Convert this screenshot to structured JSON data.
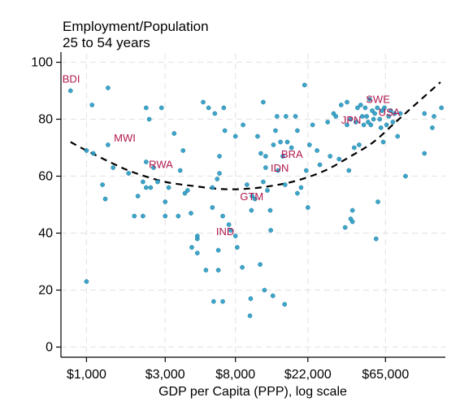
{
  "chart_data": {
    "type": "scatter",
    "title": "Employment/Population",
    "subtitle": "25 to 54 years",
    "xlabel": "GDP per Capita (PPP), log scale",
    "ylabel": "",
    "x_scale": "log",
    "xlim": [
      700,
      150000
    ],
    "ylim": [
      -3,
      103
    ],
    "grid": true,
    "x_ticks": [
      {
        "value": 1000,
        "label": "$1,000"
      },
      {
        "value": 3000,
        "label": "$3,000"
      },
      {
        "value": 8000,
        "label": "$8,000"
      },
      {
        "value": 22000,
        "label": "$22,000"
      },
      {
        "value": 65000,
        "label": "$65,000"
      }
    ],
    "y_ticks": [
      {
        "value": 0,
        "label": "0"
      },
      {
        "value": 20,
        "label": "20"
      },
      {
        "value": 40,
        "label": "40"
      },
      {
        "value": 60,
        "label": "60"
      },
      {
        "value": 80,
        "label": "80"
      },
      {
        "value": 100,
        "label": "100"
      }
    ],
    "colors": {
      "points": "#2a9bc2",
      "labels": "#b0174f",
      "fit_line": "#000000",
      "grid": "#e6e6e6"
    },
    "fit_curve": [
      {
        "x": 800,
        "y": 72
      },
      {
        "x": 1000,
        "y": 69
      },
      {
        "x": 1500,
        "y": 64
      },
      {
        "x": 2000,
        "y": 61
      },
      {
        "x": 3000,
        "y": 58
      },
      {
        "x": 4500,
        "y": 56.5
      },
      {
        "x": 6500,
        "y": 55.5
      },
      {
        "x": 9000,
        "y": 55.5
      },
      {
        "x": 13000,
        "y": 56.5
      },
      {
        "x": 19000,
        "y": 58.5
      },
      {
        "x": 28000,
        "y": 62
      },
      {
        "x": 40000,
        "y": 67
      },
      {
        "x": 55000,
        "y": 72
      },
      {
        "x": 75000,
        "y": 79
      },
      {
        "x": 100000,
        "y": 85.5
      },
      {
        "x": 140000,
        "y": 93
      }
    ],
    "labeled_points": [
      {
        "label": "BDI",
        "x": 800,
        "y": 90
      },
      {
        "label": "MWI",
        "x": 1500,
        "y": 69
      },
      {
        "label": "RWA",
        "x": 2500,
        "y": 60
      },
      {
        "label": "IND",
        "x": 7000,
        "y": 43
      },
      {
        "label": "GTM",
        "x": 10000,
        "y": 55
      },
      {
        "label": "IDN",
        "x": 14000,
        "y": 61
      },
      {
        "label": "BRA",
        "x": 15500,
        "y": 67
      },
      {
        "label": "JPN",
        "x": 42000,
        "y": 79
      },
      {
        "label": "SWE",
        "x": 58000,
        "y": 84
      },
      {
        "label": "USA",
        "x": 69000,
        "y": 80
      }
    ],
    "points": [
      {
        "x": 800,
        "y": 90
      },
      {
        "x": 1000,
        "y": 23
      },
      {
        "x": 1000,
        "y": 69
      },
      {
        "x": 1080,
        "y": 85
      },
      {
        "x": 1100,
        "y": 68
      },
      {
        "x": 1250,
        "y": 57
      },
      {
        "x": 1300,
        "y": 52
      },
      {
        "x": 1350,
        "y": 71
      },
      {
        "x": 1350,
        "y": 91
      },
      {
        "x": 1450,
        "y": 63
      },
      {
        "x": 1800,
        "y": 61
      },
      {
        "x": 1950,
        "y": 46
      },
      {
        "x": 2050,
        "y": 53
      },
      {
        "x": 2200,
        "y": 58
      },
      {
        "x": 2200,
        "y": 46
      },
      {
        "x": 2300,
        "y": 56
      },
      {
        "x": 2300,
        "y": 65
      },
      {
        "x": 2300,
        "y": 84
      },
      {
        "x": 2400,
        "y": 80
      },
      {
        "x": 2450,
        "y": 56
      },
      {
        "x": 2550,
        "y": 63
      },
      {
        "x": 2700,
        "y": 58
      },
      {
        "x": 2850,
        "y": 84
      },
      {
        "x": 3000,
        "y": 46
      },
      {
        "x": 3000,
        "y": 51
      },
      {
        "x": 3150,
        "y": 56
      },
      {
        "x": 3400,
        "y": 75
      },
      {
        "x": 3600,
        "y": 46
      },
      {
        "x": 3700,
        "y": 62
      },
      {
        "x": 3850,
        "y": 69
      },
      {
        "x": 3950,
        "y": 54
      },
      {
        "x": 4100,
        "y": 55
      },
      {
        "x": 4300,
        "y": 47
      },
      {
        "x": 4350,
        "y": 35
      },
      {
        "x": 4700,
        "y": 38
      },
      {
        "x": 4700,
        "y": 39
      },
      {
        "x": 4700,
        "y": 33
      },
      {
        "x": 5100,
        "y": 86
      },
      {
        "x": 5300,
        "y": 27
      },
      {
        "x": 5500,
        "y": 84
      },
      {
        "x": 5800,
        "y": 49
      },
      {
        "x": 5800,
        "y": 56
      },
      {
        "x": 5900,
        "y": 16
      },
      {
        "x": 6000,
        "y": 82
      },
      {
        "x": 6200,
        "y": 59
      },
      {
        "x": 6300,
        "y": 27
      },
      {
        "x": 6300,
        "y": 34
      },
      {
        "x": 6400,
        "y": 67
      },
      {
        "x": 6400,
        "y": 61
      },
      {
        "x": 6700,
        "y": 16
      },
      {
        "x": 6700,
        "y": 46
      },
      {
        "x": 6800,
        "y": 84
      },
      {
        "x": 6900,
        "y": 76
      },
      {
        "x": 7300,
        "y": 43
      },
      {
        "x": 7500,
        "y": 41
      },
      {
        "x": 8000,
        "y": 39
      },
      {
        "x": 8000,
        "y": 74
      },
      {
        "x": 8200,
        "y": 35
      },
      {
        "x": 8800,
        "y": 28
      },
      {
        "x": 8900,
        "y": 78
      },
      {
        "x": 9400,
        "y": 57
      },
      {
        "x": 9800,
        "y": 11
      },
      {
        "x": 9900,
        "y": 17
      },
      {
        "x": 10000,
        "y": 48
      },
      {
        "x": 10100,
        "y": 53
      },
      {
        "x": 10500,
        "y": 52
      },
      {
        "x": 10900,
        "y": 74
      },
      {
        "x": 11300,
        "y": 29
      },
      {
        "x": 11400,
        "y": 68
      },
      {
        "x": 11800,
        "y": 58
      },
      {
        "x": 11800,
        "y": 86
      },
      {
        "x": 12000,
        "y": 20
      },
      {
        "x": 12200,
        "y": 67
      },
      {
        "x": 12200,
        "y": 63
      },
      {
        "x": 12500,
        "y": 55
      },
      {
        "x": 13000,
        "y": 48
      },
      {
        "x": 13100,
        "y": 41
      },
      {
        "x": 13500,
        "y": 18
      },
      {
        "x": 13600,
        "y": 71
      },
      {
        "x": 14000,
        "y": 76
      },
      {
        "x": 14300,
        "y": 81
      },
      {
        "x": 14500,
        "y": 62
      },
      {
        "x": 15000,
        "y": 72
      },
      {
        "x": 15500,
        "y": 67
      },
      {
        "x": 15900,
        "y": 15
      },
      {
        "x": 16000,
        "y": 57
      },
      {
        "x": 16200,
        "y": 81
      },
      {
        "x": 16500,
        "y": 72
      },
      {
        "x": 17500,
        "y": 70
      },
      {
        "x": 18500,
        "y": 81
      },
      {
        "x": 19000,
        "y": 54
      },
      {
        "x": 19000,
        "y": 76
      },
      {
        "x": 20000,
        "y": 56
      },
      {
        "x": 21000,
        "y": 92
      },
      {
        "x": 21500,
        "y": 62
      },
      {
        "x": 22000,
        "y": 49
      },
      {
        "x": 22500,
        "y": 71
      },
      {
        "x": 23500,
        "y": 78
      },
      {
        "x": 25000,
        "y": 69
      },
      {
        "x": 26000,
        "y": 64
      },
      {
        "x": 29000,
        "y": 79
      },
      {
        "x": 30000,
        "y": 67
      },
      {
        "x": 31500,
        "y": 82
      },
      {
        "x": 32500,
        "y": 81
      },
      {
        "x": 34000,
        "y": 66
      },
      {
        "x": 35000,
        "y": 85
      },
      {
        "x": 37000,
        "y": 42
      },
      {
        "x": 38000,
        "y": 86
      },
      {
        "x": 38000,
        "y": 78
      },
      {
        "x": 39000,
        "y": 62
      },
      {
        "x": 40000,
        "y": 80
      },
      {
        "x": 40000,
        "y": 45
      },
      {
        "x": 41000,
        "y": 44
      },
      {
        "x": 41000,
        "y": 48
      },
      {
        "x": 42000,
        "y": 70
      },
      {
        "x": 43000,
        "y": 79
      },
      {
        "x": 44000,
        "y": 84
      },
      {
        "x": 45000,
        "y": 71
      },
      {
        "x": 46000,
        "y": 85
      },
      {
        "x": 47000,
        "y": 81
      },
      {
        "x": 48000,
        "y": 78
      },
      {
        "x": 49000,
        "y": 84
      },
      {
        "x": 50000,
        "y": 81
      },
      {
        "x": 51000,
        "y": 79
      },
      {
        "x": 52000,
        "y": 87
      },
      {
        "x": 53000,
        "y": 78
      },
      {
        "x": 54000,
        "y": 83
      },
      {
        "x": 55000,
        "y": 80
      },
      {
        "x": 56000,
        "y": 82
      },
      {
        "x": 57000,
        "y": 38
      },
      {
        "x": 58000,
        "y": 84
      },
      {
        "x": 58500,
        "y": 51
      },
      {
        "x": 60000,
        "y": 80
      },
      {
        "x": 61000,
        "y": 77
      },
      {
        "x": 62000,
        "y": 83
      },
      {
        "x": 63000,
        "y": 72
      },
      {
        "x": 64000,
        "y": 84
      },
      {
        "x": 66000,
        "y": 78
      },
      {
        "x": 68000,
        "y": 81
      },
      {
        "x": 70000,
        "y": 83
      },
      {
        "x": 72000,
        "y": 79
      },
      {
        "x": 74000,
        "y": 82
      },
      {
        "x": 77000,
        "y": 74
      },
      {
        "x": 80000,
        "y": 82
      },
      {
        "x": 86000,
        "y": 60
      },
      {
        "x": 112000,
        "y": 68
      },
      {
        "x": 112000,
        "y": 82
      },
      {
        "x": 125000,
        "y": 77
      },
      {
        "x": 128000,
        "y": 81
      },
      {
        "x": 142000,
        "y": 84
      }
    ]
  }
}
